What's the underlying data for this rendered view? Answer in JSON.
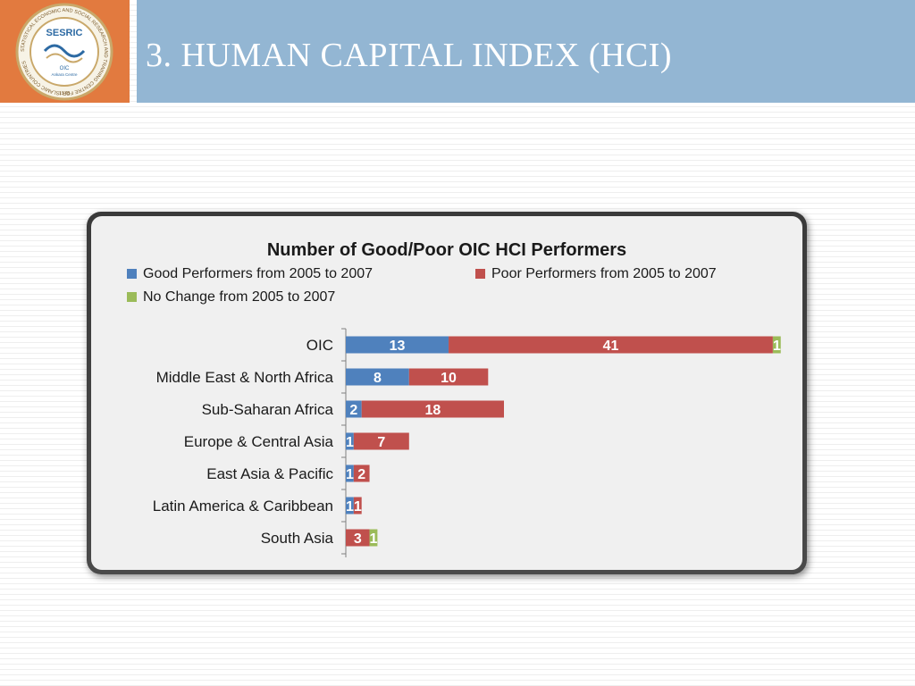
{
  "header": {
    "title": "3. HUMAN CAPITAL INDEX (HCI)",
    "logo": {
      "name": "SESRIC",
      "ring_text": "STATISTICAL ECONOMIC AND SOCIAL RESEARCH AND TRAINING CENTRE FOR ISLAMIC COUNTRIES",
      "center_text": "OIC",
      "center_subtext": "Ankara Centre",
      "year": "1978"
    }
  },
  "colors": {
    "good": "#4f81bd",
    "poor": "#c0504d",
    "no_change": "#9bbb59"
  },
  "chart_data": {
    "type": "bar",
    "orientation": "horizontal",
    "stacked": true,
    "title": "Number of Good/Poor OIC HCI Performers",
    "legend_position": "top",
    "categories": [
      "OIC",
      "Middle East & North Africa",
      "Sub-Saharan Africa",
      "Europe & Central Asia",
      "East Asia & Pacific",
      "Latin America & Caribbean",
      "South Asia"
    ],
    "series": [
      {
        "name": "Good Performers from 2005 to 2007",
        "color": "#4f81bd",
        "values": [
          13,
          8,
          2,
          1,
          1,
          1,
          0
        ]
      },
      {
        "name": "Poor Performers from 2005 to 2007",
        "color": "#c0504d",
        "values": [
          41,
          10,
          18,
          7,
          2,
          1,
          3
        ]
      },
      {
        "name": "No Change from 2005 to 2007",
        "color": "#9bbb59",
        "values": [
          1,
          0,
          0,
          0,
          0,
          0,
          1
        ]
      }
    ],
    "xlim": [
      0,
      55
    ],
    "grid": false,
    "axis_labels_visible": false
  }
}
